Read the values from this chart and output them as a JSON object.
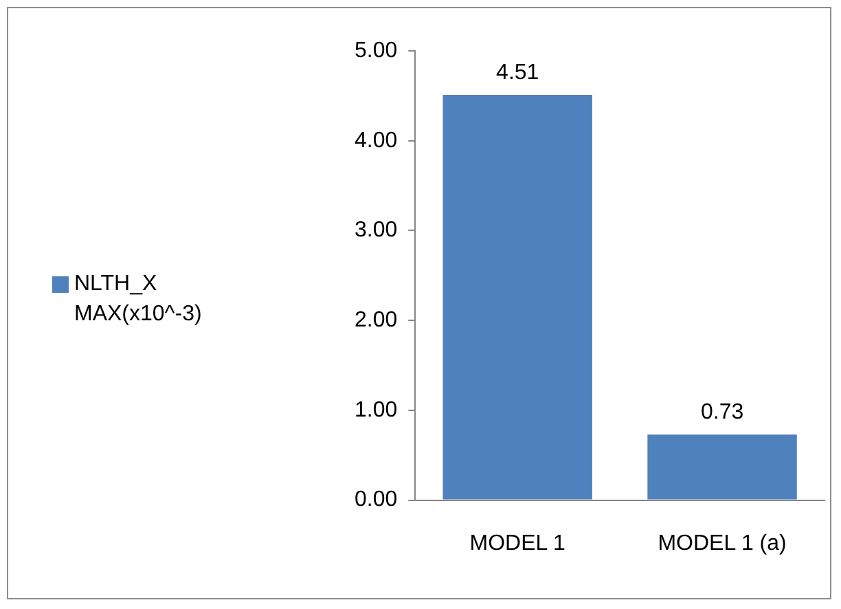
{
  "chart_data": {
    "type": "bar",
    "categories": [
      "MODEL 1",
      "MODEL 1 (a)"
    ],
    "series": [
      {
        "name": "NLTH_X MAX(x10^-3)",
        "color": "#4f81bd",
        "values": [
          4.51,
          0.73
        ]
      }
    ],
    "ylim": [
      0,
      5
    ],
    "yticks": [
      {
        "value": 0,
        "label": "0.00"
      },
      {
        "value": 1,
        "label": "1.00"
      },
      {
        "value": 2,
        "label": "2.00"
      },
      {
        "value": 3,
        "label": "3.00"
      },
      {
        "value": 4,
        "label": "4.00"
      },
      {
        "value": 5,
        "label": "5.00"
      }
    ],
    "data_labels": true,
    "legend": "left"
  }
}
